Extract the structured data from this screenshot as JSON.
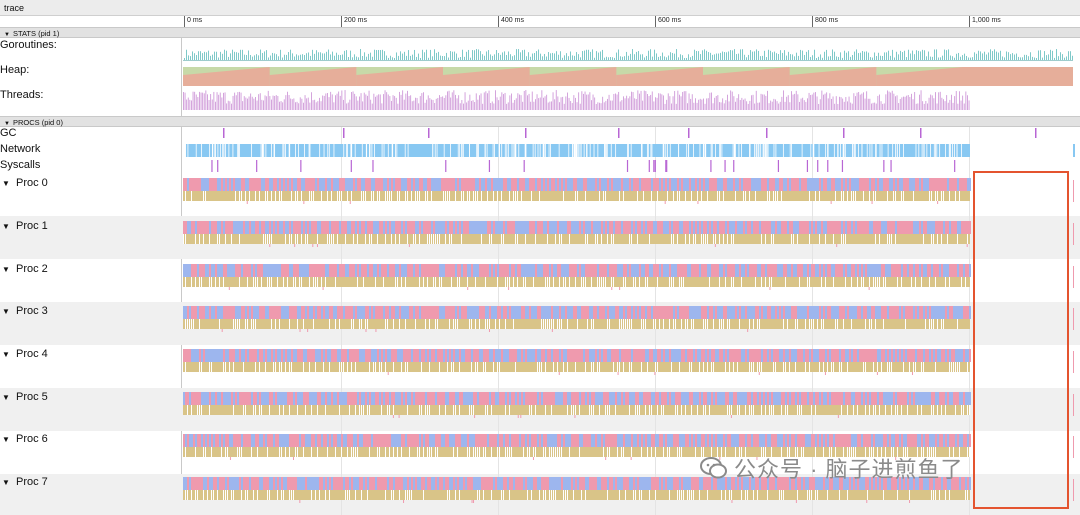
{
  "window": {
    "title": "trace"
  },
  "ruler": {
    "ticks": [
      "0 ms",
      "200 ms",
      "400 ms",
      "600 ms",
      "800 ms",
      "1,000 ms"
    ]
  },
  "stats": {
    "header": "STATS (pid 1)",
    "rows": {
      "goroutines": "Goroutines:",
      "heap": "Heap:",
      "threads": "Threads:"
    }
  },
  "procs": {
    "header": "PROCS (pid 0)",
    "gc": "GC",
    "network": "Network",
    "syscalls": "Syscalls",
    "items": [
      "Proc 0",
      "Proc 1",
      "Proc 2",
      "Proc 3",
      "Proc 4",
      "Proc 5",
      "Proc 6",
      "Proc 7"
    ]
  },
  "watermark": {
    "text": "公众号 · 脑子进煎鱼了"
  },
  "colors": {
    "goroutines": "#7fc9c9",
    "heap_main": "#e6ae9a",
    "heap_alt": "#c7d9a8",
    "threads": "#cf9ad9",
    "gc": "#b866d4",
    "network": "#88c8f2",
    "syscalls": "#b866d4",
    "proc_pink": "#ef9aae",
    "proc_blue": "#9db6ee",
    "proc_tan": "#d9c488",
    "highlight": "#e4542f"
  },
  "icons": {
    "expand": "caret-down-icon",
    "watermark": "wechat-icon"
  }
}
